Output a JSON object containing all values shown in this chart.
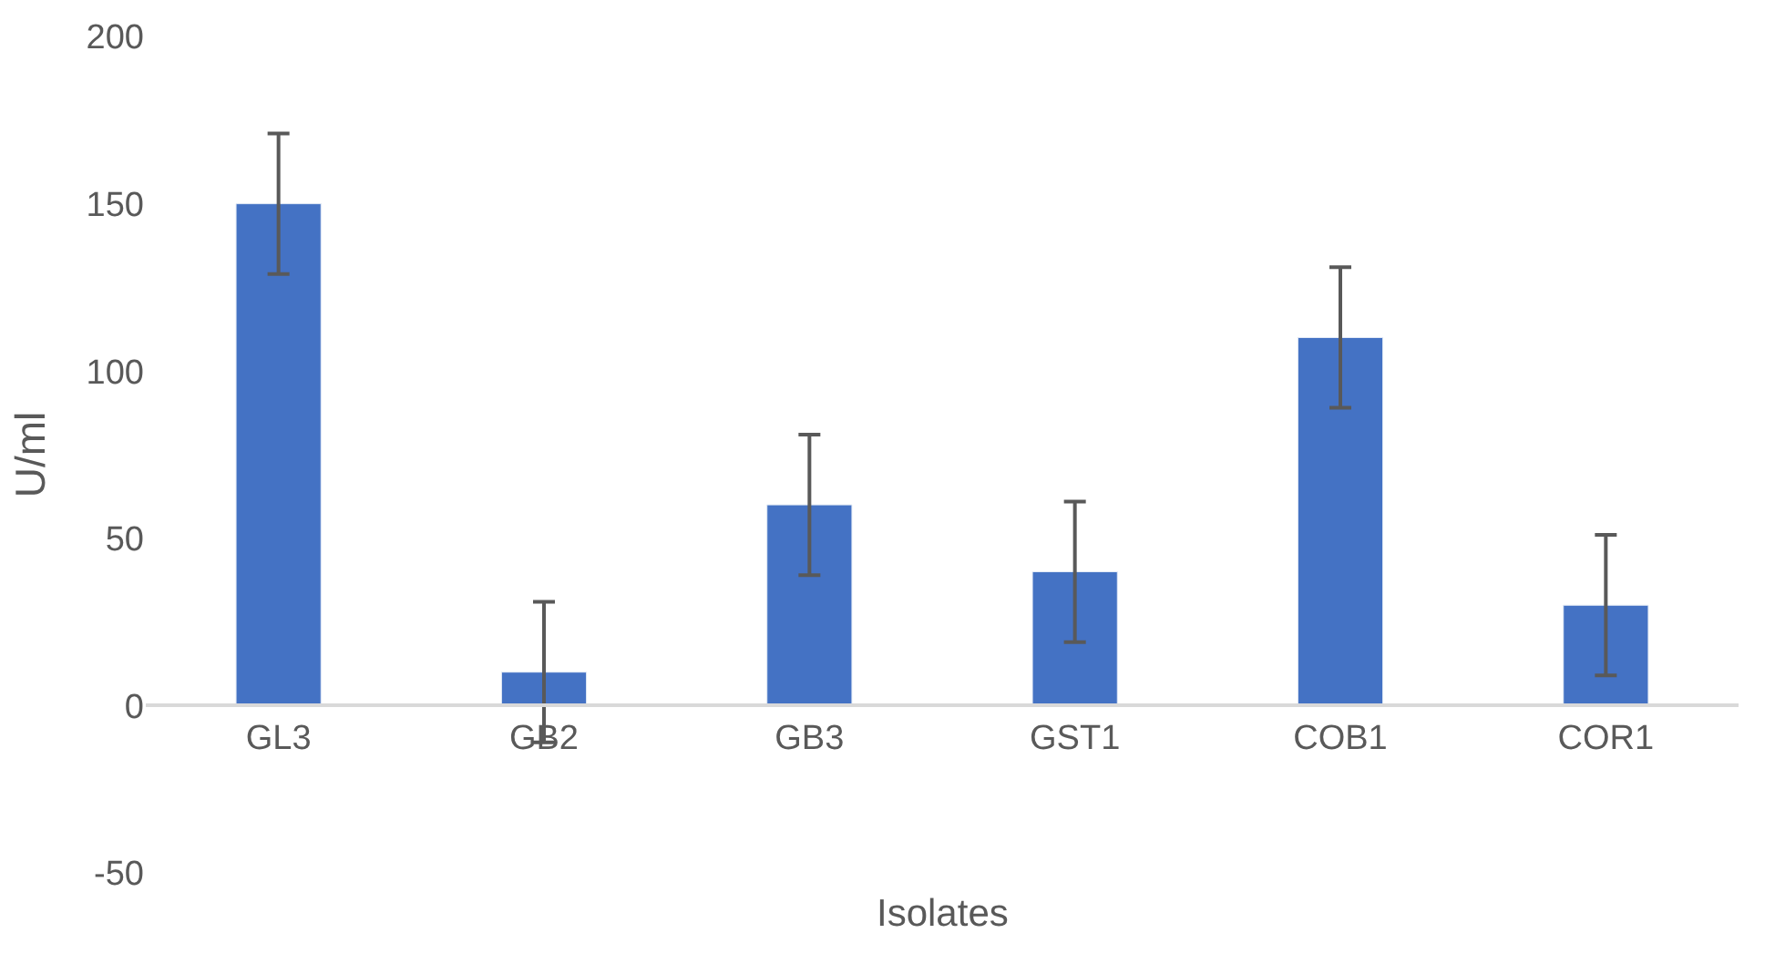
{
  "chart_data": {
    "type": "bar",
    "xlabel": "Isolates",
    "ylabel": "U/ml",
    "categories": [
      "GL3",
      "GB2",
      "GB3",
      "GST1",
      "COB1",
      "COR1"
    ],
    "values": [
      150,
      10,
      60,
      40,
      110,
      30
    ],
    "errors": [
      21,
      21,
      21,
      21,
      21,
      21
    ],
    "color": "#4472c4",
    "ylim": [
      -50,
      200
    ],
    "yticks": [
      -50,
      0,
      50,
      100,
      150,
      200
    ]
  }
}
